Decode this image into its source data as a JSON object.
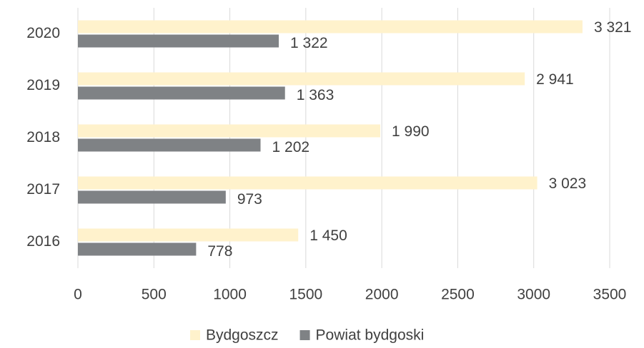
{
  "chart_data": {
    "type": "hbar",
    "categories": [
      "2016",
      "2017",
      "2018",
      "2019",
      "2020"
    ],
    "series": [
      {
        "name": "Bydgoszcz",
        "color": "#fff2cc",
        "values": [
          1450,
          3023,
          1990,
          2941,
          3321
        ],
        "value_labels": [
          "1 450",
          "3 023",
          "1 990",
          "2 941",
          "3 321"
        ]
      },
      {
        "name": "Powiat bydgoski",
        "color": "#7f8285",
        "values": [
          778,
          973,
          1202,
          1363,
          1322
        ],
        "value_labels": [
          "778",
          "973",
          "1 202",
          "1 363",
          "1 322"
        ]
      }
    ],
    "xlim": [
      0,
      3500
    ],
    "xticks": [
      0,
      500,
      1000,
      1500,
      2000,
      2500,
      3000,
      3500
    ],
    "grid": true,
    "legend": "bottom"
  }
}
